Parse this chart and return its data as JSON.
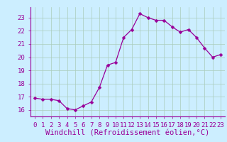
{
  "x": [
    0,
    1,
    2,
    3,
    4,
    5,
    6,
    7,
    8,
    9,
    10,
    11,
    12,
    13,
    14,
    15,
    16,
    17,
    18,
    19,
    20,
    21,
    22,
    23
  ],
  "y": [
    16.9,
    16.8,
    16.8,
    16.7,
    16.1,
    16.0,
    16.3,
    16.6,
    17.7,
    19.4,
    19.6,
    21.5,
    22.1,
    23.3,
    23.0,
    22.8,
    22.8,
    22.3,
    21.9,
    22.1,
    21.5,
    20.7,
    20.0,
    20.2
  ],
  "line_color": "#990099",
  "marker": "D",
  "marker_size": 2.5,
  "bg_color": "#cceeff",
  "grid_color": "#aaccbb",
  "tick_color": "#990099",
  "xlabel": "Windchill (Refroidissement éolien,°C)",
  "xlim": [
    -0.5,
    23.5
  ],
  "ylim": [
    15.5,
    23.8
  ],
  "yticks": [
    16,
    17,
    18,
    19,
    20,
    21,
    22,
    23
  ],
  "xticks": [
    0,
    1,
    2,
    3,
    4,
    5,
    6,
    7,
    8,
    9,
    10,
    11,
    12,
    13,
    14,
    15,
    16,
    17,
    18,
    19,
    20,
    21,
    22,
    23
  ],
  "xlabel_fontsize": 7.5,
  "tick_fontsize": 6.5
}
